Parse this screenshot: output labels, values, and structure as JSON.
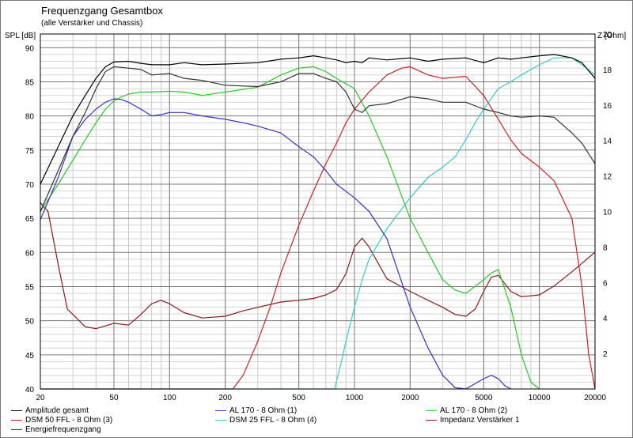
{
  "chart_data": {
    "type": "line",
    "title": "Frequenzgang Gesamtbox",
    "subtitle": "(alle Verstärker und Chassis)",
    "ylabel": "SPL [dB]",
    "y2label": "Z [Ohm]",
    "x_scale": "log",
    "xlim": [
      20,
      20000
    ],
    "ylim": [
      40,
      92
    ],
    "y2lim": [
      0,
      20
    ],
    "grid": true,
    "x_ticks": [
      20,
      50,
      100,
      200,
      500,
      1000,
      2000,
      5000,
      10000,
      20000
    ],
    "x_tick_labels": [
      "20",
      "50",
      "100",
      "200",
      "500",
      "1000",
      "2000",
      "5000",
      "10000",
      "20000"
    ],
    "y_ticks": [
      40,
      45,
      50,
      55,
      60,
      65,
      70,
      75,
      80,
      85,
      90
    ],
    "y2_ticks": [
      2,
      4,
      6,
      8,
      10,
      12,
      14,
      16,
      18,
      20
    ],
    "legend_position": "bottom",
    "series": [
      {
        "name": "Amplitude gesamt",
        "color": "#000000",
        "axis": "left",
        "x": [
          20,
          25,
          30,
          35,
          40,
          45,
          50,
          60,
          70,
          80,
          100,
          120,
          150,
          200,
          300,
          400,
          500,
          600,
          700,
          800,
          900,
          1000,
          1100,
          1200,
          1500,
          2000,
          2500,
          3000,
          4000,
          5000,
          6000,
          7000,
          8000,
          10000,
          12000,
          15000,
          17000,
          20000
        ],
        "y": [
          70,
          75.5,
          80,
          83,
          85.5,
          87.2,
          87.9,
          88,
          87.7,
          87.5,
          87.5,
          87.8,
          87.5,
          87.6,
          87.8,
          88.3,
          88.5,
          88.8,
          88.5,
          88.2,
          87.8,
          88,
          87.8,
          88.5,
          88.2,
          88.5,
          88,
          88.3,
          88.5,
          87.8,
          88.5,
          88.3,
          88.5,
          88.8,
          89,
          88.5,
          87.8,
          85.5
        ]
      },
      {
        "name": "AL 170 - 8 Ohm (1)",
        "color": "#3333cc",
        "axis": "left",
        "x": [
          20,
          25,
          30,
          35,
          40,
          45,
          50,
          55,
          60,
          70,
          80,
          90,
          100,
          120,
          150,
          200,
          250,
          300,
          400,
          500,
          600,
          700,
          800,
          1000,
          1200,
          1500,
          2000,
          2500,
          3000,
          3500,
          4000,
          5000,
          5500,
          6000,
          6500,
          7000
        ],
        "y": [
          64.8,
          71,
          77,
          79.5,
          81,
          82,
          82.5,
          82.4,
          82,
          81,
          80,
          80.2,
          80.5,
          80.5,
          80,
          79.5,
          79,
          78.5,
          77.5,
          75.5,
          74,
          72,
          70,
          68,
          66,
          62,
          52,
          46,
          42,
          40.2,
          40,
          41.5,
          42,
          41.5,
          40.5,
          40
        ]
      },
      {
        "name": "AL 170 - 8 Ohm (2)",
        "color": "#22cc22",
        "axis": "left",
        "x": [
          20,
          25,
          30,
          35,
          40,
          45,
          50,
          55,
          60,
          70,
          80,
          100,
          120,
          150,
          200,
          300,
          400,
          500,
          600,
          700,
          800,
          1000,
          1200,
          1500,
          2000,
          2500,
          3000,
          3500,
          4000,
          5000,
          5500,
          6000,
          7000,
          8000,
          9000,
          10000
        ],
        "y": [
          66,
          70,
          73.5,
          76.5,
          79,
          81,
          82.2,
          82.8,
          83.2,
          83.5,
          83.5,
          83.6,
          83.5,
          83,
          83.5,
          84.2,
          86,
          87,
          87.2,
          86.5,
          85.5,
          84,
          80,
          74,
          65,
          60,
          56,
          54.5,
          54,
          56,
          57,
          57.5,
          52,
          45,
          41,
          40
        ]
      },
      {
        "name": "DSM 50 FFL - 8 Ohm (3)",
        "color": "#cc2222",
        "axis": "left",
        "x": [
          20,
          100,
          200,
          220,
          250,
          300,
          350,
          400,
          500,
          600,
          700,
          800,
          900,
          1000,
          1200,
          1500,
          1800,
          2000,
          2500,
          3000,
          4000,
          5000,
          6000,
          7000,
          8000,
          10000,
          12000,
          15000,
          17000,
          18500,
          20000
        ],
        "y": [
          40,
          40,
          40,
          40,
          42,
          47,
          52,
          57,
          64,
          69,
          73,
          76,
          79,
          81,
          83.5,
          86,
          87,
          87.2,
          86,
          85.5,
          85.8,
          83,
          79.5,
          76.5,
          74.5,
          72.5,
          70.5,
          65,
          55,
          45,
          40
        ]
      },
      {
        "name": "DSM 25 FFL - 8 Ohm (4)",
        "color": "#33cccc",
        "axis": "left",
        "x": [
          20,
          700,
          780,
          850,
          900,
          1000,
          1100,
          1200,
          1500,
          2000,
          2500,
          3000,
          3500,
          4000,
          4500,
          5000,
          6000,
          7000,
          8000,
          10000,
          12000,
          15000,
          17000,
          20000
        ],
        "y": [
          40,
          40,
          40,
          44,
          47,
          52,
          56,
          59,
          63.5,
          68,
          71,
          72.5,
          74,
          76.5,
          79,
          81,
          84,
          85,
          86,
          87.5,
          88.5,
          88.5,
          87.5,
          86
        ]
      },
      {
        "name": "Impedanz Verstärker 1",
        "color": "#8b1a1a",
        "axis": "right",
        "x": [
          20,
          22,
          25,
          28,
          30,
          35,
          40,
          50,
          60,
          70,
          80,
          90,
          100,
          120,
          150,
          200,
          250,
          300,
          400,
          500,
          600,
          700,
          800,
          900,
          1000,
          1100,
          1200,
          1500,
          2000,
          2500,
          3000,
          3500,
          4000,
          4500,
          5000,
          5500,
          6000,
          7000,
          8000,
          10000,
          12000,
          15000,
          20000
        ],
        "y": [
          10.5,
          10,
          7,
          4.5,
          4.2,
          3.5,
          3.4,
          3.7,
          3.6,
          4.2,
          4.8,
          5,
          4.8,
          4.3,
          4,
          4.1,
          4.4,
          4.6,
          4.9,
          5,
          5.1,
          5.3,
          5.6,
          6.5,
          8,
          8.5,
          8,
          6.2,
          5.5,
          5,
          4.6,
          4.2,
          4.1,
          4.5,
          5.5,
          6.3,
          6.4,
          5.5,
          5.2,
          5.3,
          5.8,
          6.6,
          7.7
        ]
      },
      {
        "name": "Energiefrequenzgang",
        "color": "#333333",
        "axis": "left",
        "x": [
          20,
          25,
          30,
          35,
          40,
          45,
          50,
          60,
          70,
          80,
          100,
          120,
          150,
          200,
          300,
          400,
          500,
          600,
          700,
          800,
          900,
          1000,
          1100,
          1200,
          1500,
          2000,
          2500,
          3000,
          4000,
          5000,
          6000,
          7000,
          8000,
          10000,
          12000,
          15000,
          17000,
          20000
        ],
        "y": [
          66,
          72,
          77,
          80.5,
          84,
          86.5,
          87.2,
          87,
          86.8,
          86,
          86.2,
          85.5,
          85.2,
          84.5,
          84.3,
          85,
          86.2,
          86.2,
          85.5,
          85,
          83.5,
          81,
          80.5,
          81.5,
          81.8,
          82.8,
          82.5,
          82,
          82,
          81,
          80.5,
          80,
          79.8,
          80,
          79.8,
          77.5,
          76,
          73
        ]
      }
    ]
  }
}
